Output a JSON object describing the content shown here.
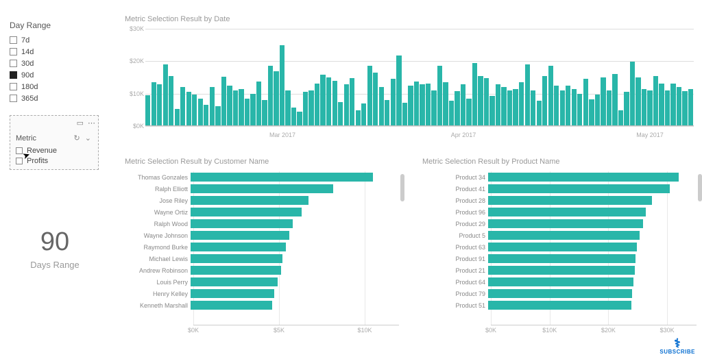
{
  "colors": {
    "primary": "#29b6a9",
    "grid": "#dddddd",
    "axis_text": "#aaaaaa",
    "title_text": "#999999",
    "background": "#ffffff"
  },
  "day_range_slicer": {
    "title": "Day Range",
    "items": [
      {
        "label": "7d",
        "checked": false
      },
      {
        "label": "14d",
        "checked": false
      },
      {
        "label": "30d",
        "checked": false
      },
      {
        "label": "90d",
        "checked": true
      },
      {
        "label": "180d",
        "checked": false
      },
      {
        "label": "365d",
        "checked": false
      }
    ]
  },
  "metric_slicer": {
    "title": "Metric",
    "items": [
      {
        "label": "Revenue",
        "checked": false
      },
      {
        "label": "Profits",
        "checked": false
      }
    ]
  },
  "card": {
    "value": "90",
    "label": "Days Range"
  },
  "chart_by_date": {
    "type": "bar",
    "title": "Metric Selection Result by Date",
    "ylim": [
      0,
      30000
    ],
    "yticks": [
      {
        "v": 0,
        "label": "$0K"
      },
      {
        "v": 10000,
        "label": "$10K"
      },
      {
        "v": 20000,
        "label": "$20K"
      },
      {
        "v": 30000,
        "label": "$30K"
      }
    ],
    "xticks": [
      {
        "pos": 0.25,
        "label": "Mar 2017"
      },
      {
        "pos": 0.58,
        "label": "Apr 2017"
      },
      {
        "pos": 0.92,
        "label": "May 2017"
      }
    ],
    "bar_color": "#29b6a9",
    "values": [
      9500,
      13500,
      12800,
      19000,
      15500,
      5200,
      12000,
      10500,
      9800,
      8500,
      6500,
      12000,
      6200,
      15200,
      12500,
      11000,
      11500,
      8500,
      10000,
      13800,
      8000,
      18500,
      17000,
      25000,
      11000,
      5800,
      4500,
      10500,
      11000,
      13000,
      15800,
      15000,
      14000,
      7500,
      12800,
      14800,
      4800,
      7000,
      18500,
      16500,
      12000,
      8000,
      14500,
      21800,
      7200,
      12500,
      13800,
      12800,
      13000,
      11000,
      18500,
      13500,
      7800,
      10800,
      12800,
      8500,
      19500,
      15500,
      14800,
      9200,
      12800,
      12000,
      11000,
      11500,
      13500,
      19000,
      11000,
      7800,
      15500,
      18500,
      12500,
      11000,
      12500,
      11500,
      10000,
      14500,
      8200,
      9800,
      15000,
      11000,
      16000,
      4800,
      10500,
      19800,
      15000,
      11500,
      11000,
      15500,
      13000,
      11000,
      13200,
      12000,
      10800,
      11500
    ]
  },
  "chart_by_customer": {
    "type": "hbar",
    "title": "Metric Selection Result by Customer Name",
    "xlim": [
      0,
      12000
    ],
    "xticks": [
      {
        "v": 0,
        "label": "$0K"
      },
      {
        "v": 5000,
        "label": "$5K"
      },
      {
        "v": 10000,
        "label": "$10K"
      }
    ],
    "bar_color": "#29b6a9",
    "rows": [
      {
        "label": "Thomas Gonzales",
        "v": 10500
      },
      {
        "label": "Ralph Elliott",
        "v": 8200
      },
      {
        "label": "Jose Riley",
        "v": 6800
      },
      {
        "label": "Wayne Ortiz",
        "v": 6400
      },
      {
        "label": "Ralph Wood",
        "v": 5900
      },
      {
        "label": "Wayne Johnson",
        "v": 5700
      },
      {
        "label": "Raymond Burke",
        "v": 5500
      },
      {
        "label": "Michael Lewis",
        "v": 5300
      },
      {
        "label": "Andrew Robinson",
        "v": 5200
      },
      {
        "label": "Louis Perry",
        "v": 5000
      },
      {
        "label": "Henry Kelley",
        "v": 4800
      },
      {
        "label": "Kenneth Marshall",
        "v": 4700
      }
    ]
  },
  "chart_by_product": {
    "type": "hbar",
    "title": "Metric Selection Result by Product Name",
    "xlim": [
      0,
      35000
    ],
    "xticks": [
      {
        "v": 0,
        "label": "$0K"
      },
      {
        "v": 10000,
        "label": "$10K"
      },
      {
        "v": 20000,
        "label": "$20K"
      },
      {
        "v": 30000,
        "label": "$30K"
      }
    ],
    "bar_color": "#29b6a9",
    "rows": [
      {
        "label": "Product 34",
        "v": 32000
      },
      {
        "label": "Product 41",
        "v": 30500
      },
      {
        "label": "Product 28",
        "v": 27500
      },
      {
        "label": "Product 96",
        "v": 26500
      },
      {
        "label": "Product 29",
        "v": 26000
      },
      {
        "label": "Product 5",
        "v": 25500
      },
      {
        "label": "Product 63",
        "v": 25000
      },
      {
        "label": "Product 91",
        "v": 24800
      },
      {
        "label": "Product 21",
        "v": 24600
      },
      {
        "label": "Product 64",
        "v": 24400
      },
      {
        "label": "Product 79",
        "v": 24200
      },
      {
        "label": "Product 51",
        "v": 24100
      }
    ]
  },
  "subscribe_label": "SUBSCRIBE"
}
